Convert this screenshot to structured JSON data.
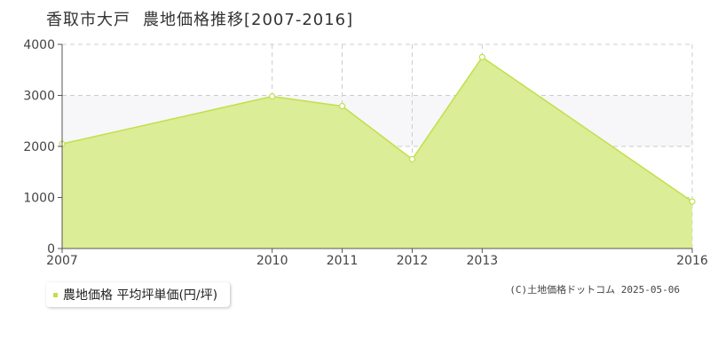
{
  "title": {
    "place": "香取市大戸",
    "subject": "農地価格推移[2007-2016]"
  },
  "legend": {
    "label": "農地価格 平均坪単価(円/坪)"
  },
  "credit": "(C)土地価格ドットコム 2025-05-06",
  "colors": {
    "fill": "#dbed97",
    "line": "#c1e04a",
    "point_fill": "#ffffff",
    "grid": "#cccccc",
    "band": "#f7f6f8",
    "axis": "#555555"
  },
  "chart_data": {
    "type": "area",
    "x": [
      2007,
      2010,
      2011,
      2012,
      2013,
      2016
    ],
    "categories": [
      "2007",
      "2010",
      "2011",
      "2012",
      "2013",
      "2016"
    ],
    "series": [
      {
        "name": "農地価格 平均坪単価(円/坪)",
        "values": [
          2050,
          2980,
          2790,
          1750,
          3750,
          920
        ]
      }
    ],
    "yticks": [
      "0",
      "1000",
      "2000",
      "3000",
      "4000"
    ],
    "ylim": [
      0,
      4000
    ],
    "grid": true,
    "legend_position": "bottom-left"
  }
}
